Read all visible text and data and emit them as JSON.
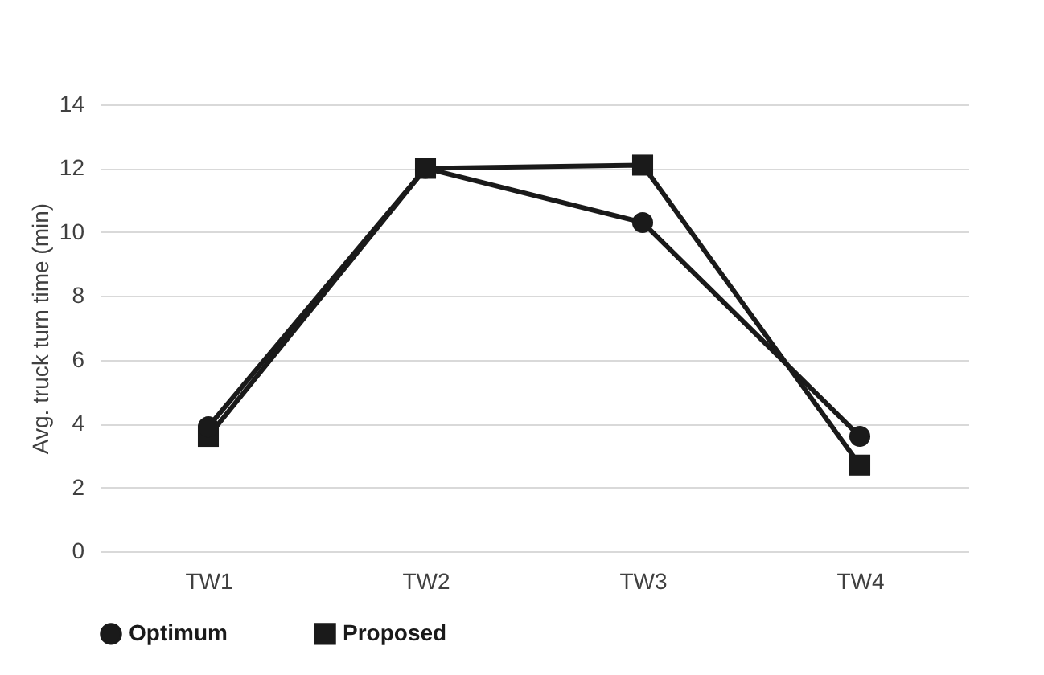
{
  "chart_data": {
    "type": "line",
    "ylabel": "Avg. truck turn time (min)",
    "categories": [
      "TW1",
      "TW2",
      "TW3",
      "TW4"
    ],
    "series": [
      {
        "name": "Optimum",
        "color": "#1a1a1a",
        "marker": "circle",
        "values": [
          3.9,
          12,
          10.3,
          3.6
        ]
      },
      {
        "name": "Proposed",
        "color": "#1a1a1a",
        "marker": "square",
        "values": [
          3.6,
          12,
          12.1,
          2.7
        ]
      }
    ],
    "ylim": [
      0,
      14
    ],
    "yticks": [
      0,
      2,
      4,
      6,
      8,
      10,
      12,
      14
    ],
    "grid": "y",
    "legend": "bottom"
  }
}
